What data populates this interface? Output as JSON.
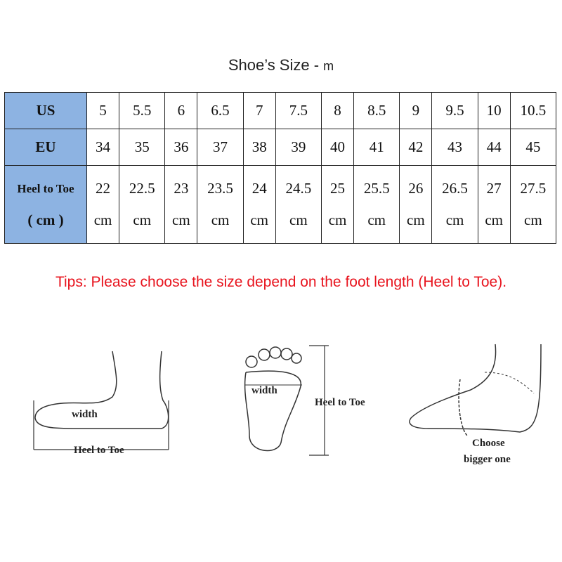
{
  "title": "Shoe’s Size -",
  "title_unit": "m",
  "table": {
    "row_headers": [
      "US",
      "EU",
      "Heel to Toe",
      "( cm )"
    ],
    "us": [
      "5",
      "5.5",
      "6",
      "6.5",
      "7",
      "7.5",
      "8",
      "8.5",
      "9",
      "9.5",
      "10",
      "10.5"
    ],
    "eu": [
      "34",
      "35",
      "36",
      "37",
      "38",
      "39",
      "40",
      "41",
      "42",
      "43",
      "44",
      "45"
    ],
    "cm": [
      "22",
      "22.5",
      "23",
      "23.5",
      "24",
      "24.5",
      "25",
      "25.5",
      "26",
      "26.5",
      "27",
      "27.5"
    ],
    "cm_unit": "cm",
    "header_color": "#8db3e2"
  },
  "tips": "Tips: Please choose the size depend on the foot length (Heel to Toe).",
  "tips_color": "#e8141e",
  "diagrams": {
    "side_width": "width",
    "side_length": "Heel to Toe",
    "sole_width": "width",
    "sole_length": "Heel to Toe",
    "fit_line1": "Choose",
    "fit_line2": "bigger one"
  }
}
